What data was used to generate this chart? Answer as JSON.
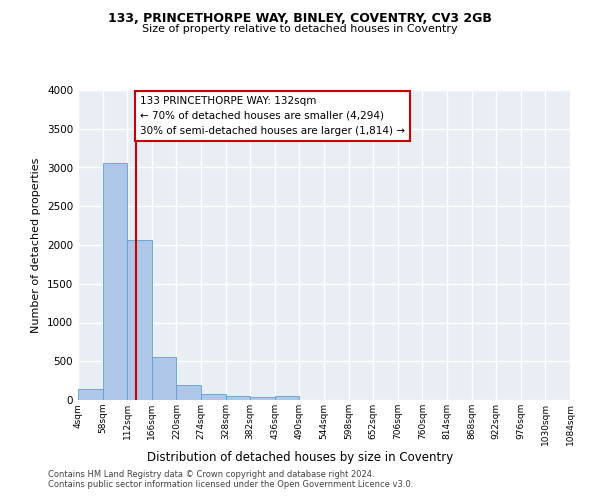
{
  "title1": "133, PRINCETHORPE WAY, BINLEY, COVENTRY, CV3 2GB",
  "title2": "Size of property relative to detached houses in Coventry",
  "xlabel": "Distribution of detached houses by size in Coventry",
  "ylabel": "Number of detached properties",
  "annotation_line1": "133 PRINCETHORPE WAY: 132sqm",
  "annotation_line2": "← 70% of detached houses are smaller (4,294)",
  "annotation_line3": "30% of semi-detached houses are larger (1,814) →",
  "footer1": "Contains HM Land Registry data © Crown copyright and database right 2024.",
  "footer2": "Contains public sector information licensed under the Open Government Licence v3.0.",
  "bin_edges": [
    4,
    58,
    112,
    166,
    220,
    274,
    328,
    382,
    436,
    490,
    544,
    598,
    652,
    706,
    760,
    814,
    868,
    922,
    976,
    1030,
    1084
  ],
  "bar_heights": [
    140,
    3060,
    2060,
    560,
    200,
    75,
    50,
    35,
    50,
    0,
    0,
    0,
    0,
    0,
    0,
    0,
    0,
    0,
    0,
    0
  ],
  "bar_color": "#aec6e8",
  "bar_edge_color": "#5a9fd4",
  "vline_color": "#cc0000",
  "vline_x": 132,
  "annotation_box_color": "#cc0000",
  "background_color": "#e8eef4",
  "grid_color": "#ffffff",
  "ylim": [
    0,
    4000
  ],
  "xlim": [
    4,
    1084
  ],
  "yticks": [
    0,
    500,
    1000,
    1500,
    2000,
    2500,
    3000,
    3500,
    4000
  ]
}
